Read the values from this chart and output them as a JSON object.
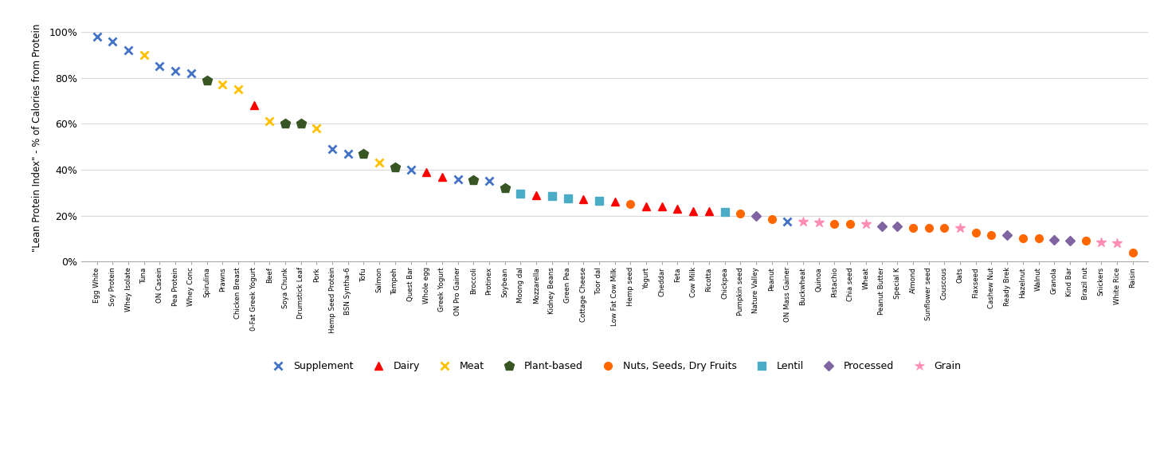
{
  "ylabel": "\"Lean Protein Index\" - % of Calories from Protein",
  "ylim": [
    0,
    1.08
  ],
  "yticks": [
    0,
    0.2,
    0.4,
    0.6,
    0.8,
    1.0
  ],
  "ytick_labels": [
    "0%",
    "20%",
    "40%",
    "60%",
    "80%",
    "100%"
  ],
  "items": [
    {
      "name": "Egg White",
      "value": 0.98,
      "category": "Supplement"
    },
    {
      "name": "Soy Protein",
      "value": 0.96,
      "category": "Supplement"
    },
    {
      "name": "Whey Isolate",
      "value": 0.92,
      "category": "Supplement"
    },
    {
      "name": "Tuna",
      "value": 0.9,
      "category": "Meat"
    },
    {
      "name": "ON Casein",
      "value": 0.85,
      "category": "Supplement"
    },
    {
      "name": "Pea Protein",
      "value": 0.83,
      "category": "Supplement"
    },
    {
      "name": "Whey Conc",
      "value": 0.82,
      "category": "Supplement"
    },
    {
      "name": "Spirulina",
      "value": 0.79,
      "category": "Plant-based"
    },
    {
      "name": "Prawns",
      "value": 0.77,
      "category": "Meat"
    },
    {
      "name": "Chicken Breast",
      "value": 0.75,
      "category": "Meat"
    },
    {
      "name": "0-Fat Greek Yogurt",
      "value": 0.68,
      "category": "Dairy"
    },
    {
      "name": "Beef",
      "value": 0.61,
      "category": "Meat"
    },
    {
      "name": "Soya Chunk",
      "value": 0.6,
      "category": "Plant-based"
    },
    {
      "name": "Drumstick Leaf",
      "value": 0.6,
      "category": "Plant-based"
    },
    {
      "name": "Pork",
      "value": 0.58,
      "category": "Meat"
    },
    {
      "name": "Hemp Seed Protein",
      "value": 0.49,
      "category": "Supplement"
    },
    {
      "name": "BSN Syntha-6",
      "value": 0.47,
      "category": "Supplement"
    },
    {
      "name": "Tofu",
      "value": 0.47,
      "category": "Plant-based"
    },
    {
      "name": "Salmon",
      "value": 0.43,
      "category": "Meat"
    },
    {
      "name": "Tempeh",
      "value": 0.41,
      "category": "Plant-based"
    },
    {
      "name": "Quest Bar",
      "value": 0.4,
      "category": "Supplement"
    },
    {
      "name": "Whole egg",
      "value": 0.39,
      "category": "Dairy"
    },
    {
      "name": "Greek Yogurt",
      "value": 0.37,
      "category": "Dairy"
    },
    {
      "name": "ON Pro Gainer",
      "value": 0.36,
      "category": "Supplement"
    },
    {
      "name": "Protinex",
      "value": 0.35,
      "category": "Supplement"
    },
    {
      "name": "Soybean",
      "value": 0.32,
      "category": "Plant-based"
    },
    {
      "name": "Mozzarella",
      "value": 0.29,
      "category": "Dairy"
    },
    {
      "name": "Cottage Cheese",
      "value": 0.27,
      "category": "Dairy"
    },
    {
      "name": "Low Fat Cow Milk",
      "value": 0.26,
      "category": "Dairy"
    },
    {
      "name": "Hemp seed",
      "value": 0.25,
      "category": "Nuts, Seeds, Dry Fruits"
    },
    {
      "name": "Yogurt",
      "value": 0.24,
      "category": "Dairy"
    },
    {
      "name": "Cheddar",
      "value": 0.24,
      "category": "Dairy"
    },
    {
      "name": "Feta",
      "value": 0.23,
      "category": "Dairy"
    },
    {
      "name": "Cow Milk",
      "value": 0.22,
      "category": "Dairy"
    },
    {
      "name": "Ricotta",
      "value": 0.22,
      "category": "Dairy"
    },
    {
      "name": "ON Mass Gainer",
      "value": 0.175,
      "category": "Supplement"
    },
    {
      "name": "Buckwheat",
      "value": 0.175,
      "category": "Grain"
    },
    {
      "name": "Quinoa",
      "value": 0.17,
      "category": "Grain"
    },
    {
      "name": "Pistachio",
      "value": 0.165,
      "category": "Nuts, Seeds, Dry Fruits"
    },
    {
      "name": "Chia seed",
      "value": 0.165,
      "category": "Nuts, Seeds, Dry Fruits"
    },
    {
      "name": "Broccoli",
      "value": 0.355,
      "category": "Plant-based"
    },
    {
      "name": "Moong dal",
      "value": 0.295,
      "category": "Lentil"
    },
    {
      "name": "Kidney Beans",
      "value": 0.285,
      "category": "Lentil"
    },
    {
      "name": "Green Pea",
      "value": 0.275,
      "category": "Lentil"
    },
    {
      "name": "Toor dal",
      "value": 0.265,
      "category": "Lentil"
    },
    {
      "name": "Chickpea",
      "value": 0.215,
      "category": "Lentil"
    },
    {
      "name": "Pumpkin seed",
      "value": 0.21,
      "category": "Nuts, Seeds, Dry Fruits"
    },
    {
      "name": "Nature Valley",
      "value": 0.2,
      "category": "Processed"
    },
    {
      "name": "Peanut",
      "value": 0.185,
      "category": "Nuts, Seeds, Dry Fruits"
    },
    {
      "name": "Wheat",
      "value": 0.165,
      "category": "Grain"
    },
    {
      "name": "Peanut Butter",
      "value": 0.155,
      "category": "Processed"
    },
    {
      "name": "Special K",
      "value": 0.155,
      "category": "Processed"
    },
    {
      "name": "Almond",
      "value": 0.145,
      "category": "Nuts, Seeds, Dry Fruits"
    },
    {
      "name": "Sunflower seed",
      "value": 0.145,
      "category": "Nuts, Seeds, Dry Fruits"
    },
    {
      "name": "Couscous",
      "value": 0.145,
      "category": "Nuts, Seeds, Dry Fruits"
    },
    {
      "name": "Oats",
      "value": 0.145,
      "category": "Grain"
    },
    {
      "name": "Flaxseed",
      "value": 0.125,
      "category": "Nuts, Seeds, Dry Fruits"
    },
    {
      "name": "Cashew Nut",
      "value": 0.115,
      "category": "Nuts, Seeds, Dry Fruits"
    },
    {
      "name": "Ready Brek",
      "value": 0.115,
      "category": "Processed"
    },
    {
      "name": "Hazelnut",
      "value": 0.1,
      "category": "Nuts, Seeds, Dry Fruits"
    },
    {
      "name": "Walnut",
      "value": 0.1,
      "category": "Nuts, Seeds, Dry Fruits"
    },
    {
      "name": "Granola",
      "value": 0.095,
      "category": "Processed"
    },
    {
      "name": "Kind Bar",
      "value": 0.09,
      "category": "Processed"
    },
    {
      "name": "Brazil nut",
      "value": 0.09,
      "category": "Nuts, Seeds, Dry Fruits"
    },
    {
      "name": "Snickers",
      "value": 0.085,
      "category": "Grain"
    },
    {
      "name": "White Rice",
      "value": 0.08,
      "category": "Grain"
    },
    {
      "name": "Raisin",
      "value": 0.04,
      "category": "Nuts, Seeds, Dry Fruits"
    }
  ],
  "categories": {
    "Supplement": {
      "color": "#4472C4",
      "marker": "x",
      "ms": 7,
      "mew": 2
    },
    "Dairy": {
      "color": "#FF0000",
      "marker": "^",
      "ms": 7,
      "mew": 1
    },
    "Meat": {
      "color": "#FFC000",
      "marker": "x",
      "ms": 7,
      "mew": 2
    },
    "Plant-based": {
      "color": "#375623",
      "marker": "p",
      "ms": 9,
      "mew": 1
    },
    "Nuts, Seeds, Dry Fruits": {
      "color": "#FF6600",
      "marker": "o",
      "ms": 7,
      "mew": 1
    },
    "Lentil": {
      "color": "#4BACC6",
      "marker": "s",
      "ms": 7,
      "mew": 1
    },
    "Processed": {
      "color": "#8064A2",
      "marker": "D",
      "ms": 6,
      "mew": 1
    },
    "Grain": {
      "color": "#FF8CB4",
      "marker": "*",
      "ms": 9,
      "mew": 1
    }
  },
  "background_color": "#ffffff",
  "grid_color": "#D9D9D9"
}
